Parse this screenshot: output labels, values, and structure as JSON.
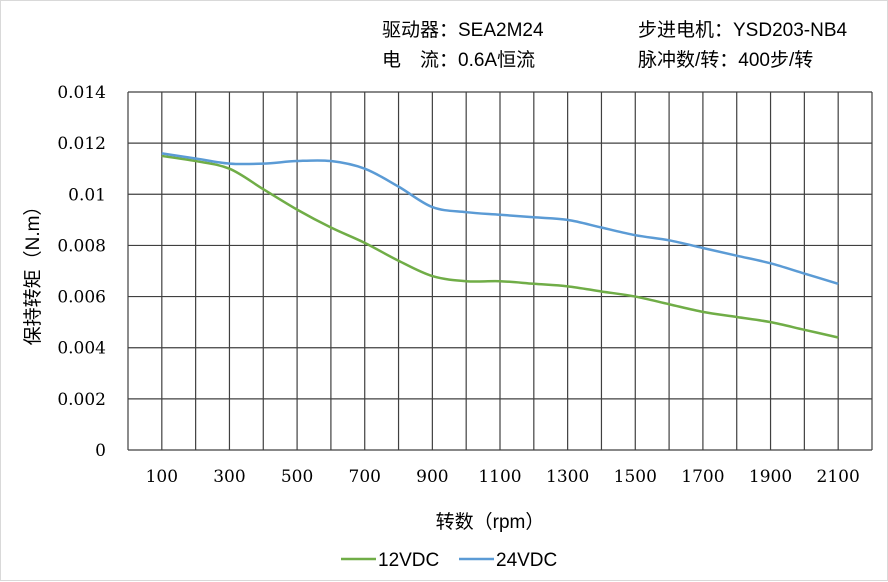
{
  "header": {
    "driver": "驱动器：SEA2M24",
    "motor": "步进电机：YSD203-NB4",
    "current": "电　流：0.6A恒流",
    "pulses": "脉冲数/转：400步/转"
  },
  "chart_data": {
    "type": "line",
    "xlabel": "转数（rpm）",
    "ylabel": "保持转矩（N.m）",
    "x": [
      100,
      200,
      300,
      400,
      500,
      600,
      700,
      800,
      900,
      1000,
      1100,
      1200,
      1300,
      1400,
      1500,
      1600,
      1700,
      1800,
      1900,
      2000,
      2100
    ],
    "xlim": [
      0,
      2200
    ],
    "ylim": [
      0,
      0.014
    ],
    "xticks": [
      "100",
      "300",
      "500",
      "700",
      "900",
      "1100",
      "1300",
      "1500",
      "1700",
      "1900",
      "2100"
    ],
    "yticks": [
      "0",
      "0.002",
      "0.004",
      "0.006",
      "0.008",
      "0.01",
      "0.012",
      "0.014"
    ],
    "grid": true,
    "legend": "bottom",
    "series": [
      {
        "name": "12VDC",
        "color": "#70ad47",
        "values": [
          0.0115,
          0.0113,
          0.011,
          0.0102,
          0.0094,
          0.0087,
          0.0081,
          0.0074,
          0.0068,
          0.0066,
          0.0066,
          0.0065,
          0.0064,
          0.0062,
          0.006,
          0.0057,
          0.0054,
          0.0052,
          0.005,
          0.0047,
          0.0044
        ]
      },
      {
        "name": "24VDC",
        "color": "#5b9bd5",
        "values": [
          0.0116,
          0.0114,
          0.0112,
          0.0112,
          0.0113,
          0.0113,
          0.011,
          0.0103,
          0.0095,
          0.0093,
          0.0092,
          0.0091,
          0.009,
          0.0087,
          0.0084,
          0.0082,
          0.0079,
          0.0076,
          0.0073,
          0.0069,
          0.0065
        ]
      }
    ]
  }
}
